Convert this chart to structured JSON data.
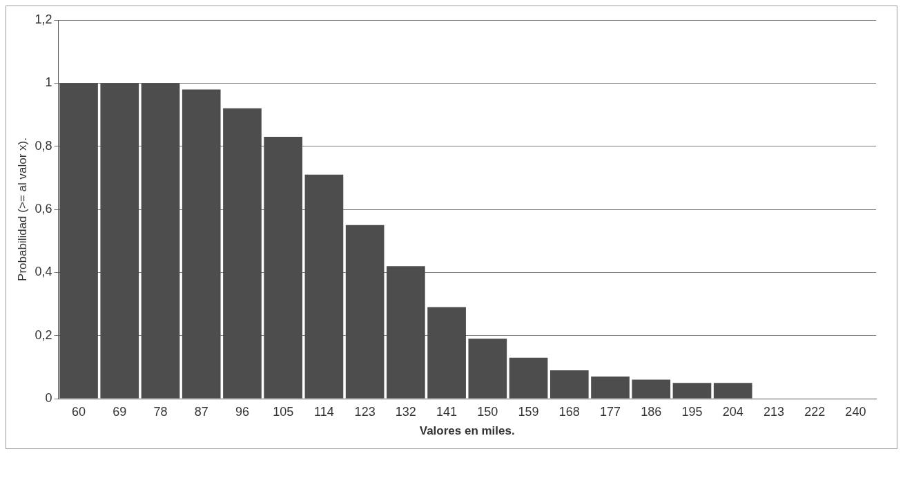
{
  "chart_data": {
    "type": "bar",
    "xlabel": "Valores en miles.",
    "ylabel": "Probabilidad (>= al valor x).",
    "categories": [
      "60",
      "69",
      "78",
      "87",
      "96",
      "105",
      "114",
      "123",
      "132",
      "141",
      "150",
      "159",
      "168",
      "177",
      "186",
      "195",
      "204",
      "213",
      "222",
      "240"
    ],
    "values": [
      1.0,
      1.0,
      1.0,
      0.98,
      0.92,
      0.83,
      0.71,
      0.55,
      0.42,
      0.29,
      0.19,
      0.13,
      0.09,
      0.07,
      0.06,
      0.05,
      0.05,
      0,
      0,
      0
    ],
    "color": "#4d4d4d",
    "ylim": [
      0,
      1.2
    ],
    "yticks": [
      0,
      {
        "value": 0.2,
        "label": "0,2"
      },
      {
        "value": 0.4,
        "label": "0,4"
      },
      {
        "value": 0.6,
        "label": "0,6"
      },
      {
        "value": 0.8,
        "label": "0,8"
      },
      1,
      {
        "value": 1.2,
        "label": "1,2"
      }
    ],
    "grid": "y"
  }
}
